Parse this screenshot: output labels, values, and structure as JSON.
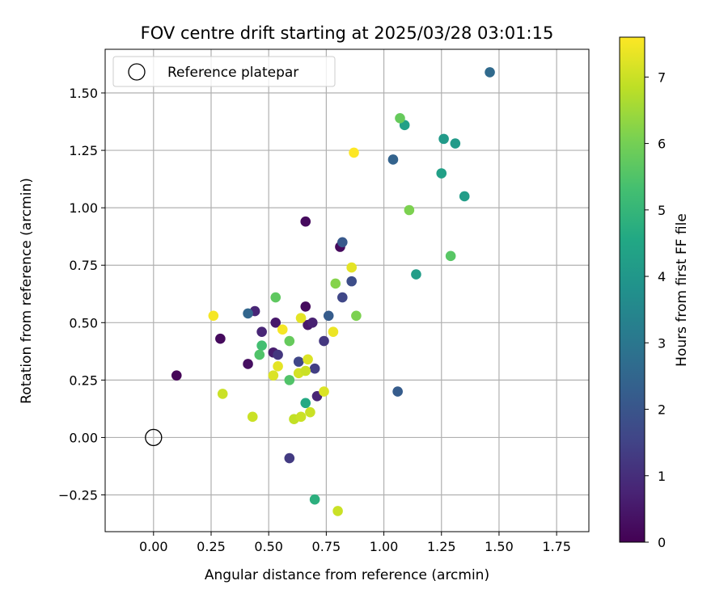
{
  "chart_data": {
    "type": "scatter",
    "title": "FOV centre drift starting at 2025/03/28 03:01:15",
    "xlabel": "Angular distance from reference (arcmin)",
    "ylabel": "Rotation from reference (arcmin)",
    "xlim": [
      -0.21,
      1.89
    ],
    "ylim": [
      -0.41,
      1.69
    ],
    "xticks": [
      0.0,
      0.25,
      0.5,
      0.75,
      1.0,
      1.25,
      1.5,
      1.75
    ],
    "xtick_labels": [
      "0.00",
      "0.25",
      "0.50",
      "0.75",
      "1.00",
      "1.25",
      "1.50",
      "1.75"
    ],
    "yticks": [
      -0.25,
      0.0,
      0.25,
      0.5,
      0.75,
      1.0,
      1.25,
      1.5
    ],
    "ytick_labels": [
      "−0.25",
      "0.00",
      "0.25",
      "0.50",
      "0.75",
      "1.00",
      "1.25",
      "1.50"
    ],
    "grid": true,
    "legend": {
      "position": "upper-left",
      "entries": [
        "Reference platepar"
      ]
    },
    "reference_point": {
      "x": 0.0,
      "y": 0.0
    },
    "colorbar": {
      "label": "Hours from first FF file",
      "colormap": "viridis",
      "range": [
        0,
        7.6
      ],
      "ticks": [
        0,
        1,
        2,
        3,
        4,
        5,
        6,
        7
      ],
      "tick_labels": [
        "0",
        "1",
        "2",
        "3",
        "4",
        "5",
        "6",
        "7"
      ]
    },
    "points": [
      {
        "x": 0.1,
        "y": 0.27,
        "c": 0.1
      },
      {
        "x": 0.29,
        "y": 0.43,
        "c": 0.2
      },
      {
        "x": 0.41,
        "y": 0.32,
        "c": 0.3
      },
      {
        "x": 0.44,
        "y": 0.55,
        "c": 0.8
      },
      {
        "x": 0.47,
        "y": 0.46,
        "c": 0.8
      },
      {
        "x": 0.52,
        "y": 0.37,
        "c": 0.6
      },
      {
        "x": 0.53,
        "y": 0.5,
        "c": 0.5
      },
      {
        "x": 0.54,
        "y": 0.36,
        "c": 1.2
      },
      {
        "x": 0.59,
        "y": -0.09,
        "c": 1.3
      },
      {
        "x": 0.66,
        "y": 0.94,
        "c": 0.2
      },
      {
        "x": 0.66,
        "y": 0.57,
        "c": 0.2
      },
      {
        "x": 0.67,
        "y": 0.49,
        "c": 0.5
      },
      {
        "x": 0.69,
        "y": 0.5,
        "c": 0.7
      },
      {
        "x": 0.7,
        "y": 0.3,
        "c": 1.4
      },
      {
        "x": 0.71,
        "y": 0.18,
        "c": 0.8
      },
      {
        "x": 0.74,
        "y": 0.42,
        "c": 1.2
      },
      {
        "x": 0.63,
        "y": 0.33,
        "c": 1.6
      },
      {
        "x": 0.76,
        "y": 0.53,
        "c": 2.2
      },
      {
        "x": 0.81,
        "y": 0.83,
        "c": 0.2
      },
      {
        "x": 0.82,
        "y": 0.85,
        "c": 2.1
      },
      {
        "x": 0.82,
        "y": 0.61,
        "c": 1.6
      },
      {
        "x": 0.86,
        "y": 0.68,
        "c": 1.8
      },
      {
        "x": 0.41,
        "y": 0.54,
        "c": 2.5
      },
      {
        "x": 1.04,
        "y": 1.21,
        "c": 2.4
      },
      {
        "x": 1.06,
        "y": 0.2,
        "c": 2.2
      },
      {
        "x": 1.46,
        "y": 1.59,
        "c": 2.6
      },
      {
        "x": 1.09,
        "y": 1.36,
        "c": 4.3
      },
      {
        "x": 1.14,
        "y": 0.71,
        "c": 4.2
      },
      {
        "x": 1.26,
        "y": 1.3,
        "c": 4.1
      },
      {
        "x": 1.25,
        "y": 1.15,
        "c": 4.3
      },
      {
        "x": 1.31,
        "y": 1.28,
        "c": 4.1
      },
      {
        "x": 1.35,
        "y": 1.05,
        "c": 4.2
      },
      {
        "x": 0.66,
        "y": 0.15,
        "c": 4.6
      },
      {
        "x": 0.7,
        "y": -0.27,
        "c": 4.8
      },
      {
        "x": 0.47,
        "y": 0.4,
        "c": 5.3
      },
      {
        "x": 0.46,
        "y": 0.36,
        "c": 5.5
      },
      {
        "x": 0.53,
        "y": 0.61,
        "c": 5.7
      },
      {
        "x": 0.59,
        "y": 0.25,
        "c": 5.5
      },
      {
        "x": 0.59,
        "y": 0.42,
        "c": 5.8
      },
      {
        "x": 1.07,
        "y": 1.39,
        "c": 5.8
      },
      {
        "x": 1.11,
        "y": 0.99,
        "c": 6.1
      },
      {
        "x": 1.29,
        "y": 0.79,
        "c": 5.6
      },
      {
        "x": 0.79,
        "y": 0.67,
        "c": 6.2
      },
      {
        "x": 0.88,
        "y": 0.53,
        "c": 6.1
      },
      {
        "x": 0.26,
        "y": 0.53,
        "c": 7.5
      },
      {
        "x": 0.3,
        "y": 0.19,
        "c": 7.0
      },
      {
        "x": 0.43,
        "y": 0.09,
        "c": 7.0
      },
      {
        "x": 0.52,
        "y": 0.27,
        "c": 7.2
      },
      {
        "x": 0.54,
        "y": 0.31,
        "c": 7.3
      },
      {
        "x": 0.56,
        "y": 0.47,
        "c": 7.5
      },
      {
        "x": 0.61,
        "y": 0.08,
        "c": 6.9
      },
      {
        "x": 0.63,
        "y": 0.28,
        "c": 7.1
      },
      {
        "x": 0.64,
        "y": 0.52,
        "c": 7.3
      },
      {
        "x": 0.64,
        "y": 0.09,
        "c": 7.0
      },
      {
        "x": 0.66,
        "y": 0.29,
        "c": 7.0
      },
      {
        "x": 0.67,
        "y": 0.34,
        "c": 7.2
      },
      {
        "x": 0.68,
        "y": 0.11,
        "c": 7.0
      },
      {
        "x": 0.74,
        "y": 0.2,
        "c": 7.2
      },
      {
        "x": 0.78,
        "y": 0.46,
        "c": 7.4
      },
      {
        "x": 0.8,
        "y": -0.32,
        "c": 7.0
      },
      {
        "x": 0.86,
        "y": 0.74,
        "c": 7.3
      },
      {
        "x": 0.87,
        "y": 1.24,
        "c": 7.6
      }
    ]
  }
}
